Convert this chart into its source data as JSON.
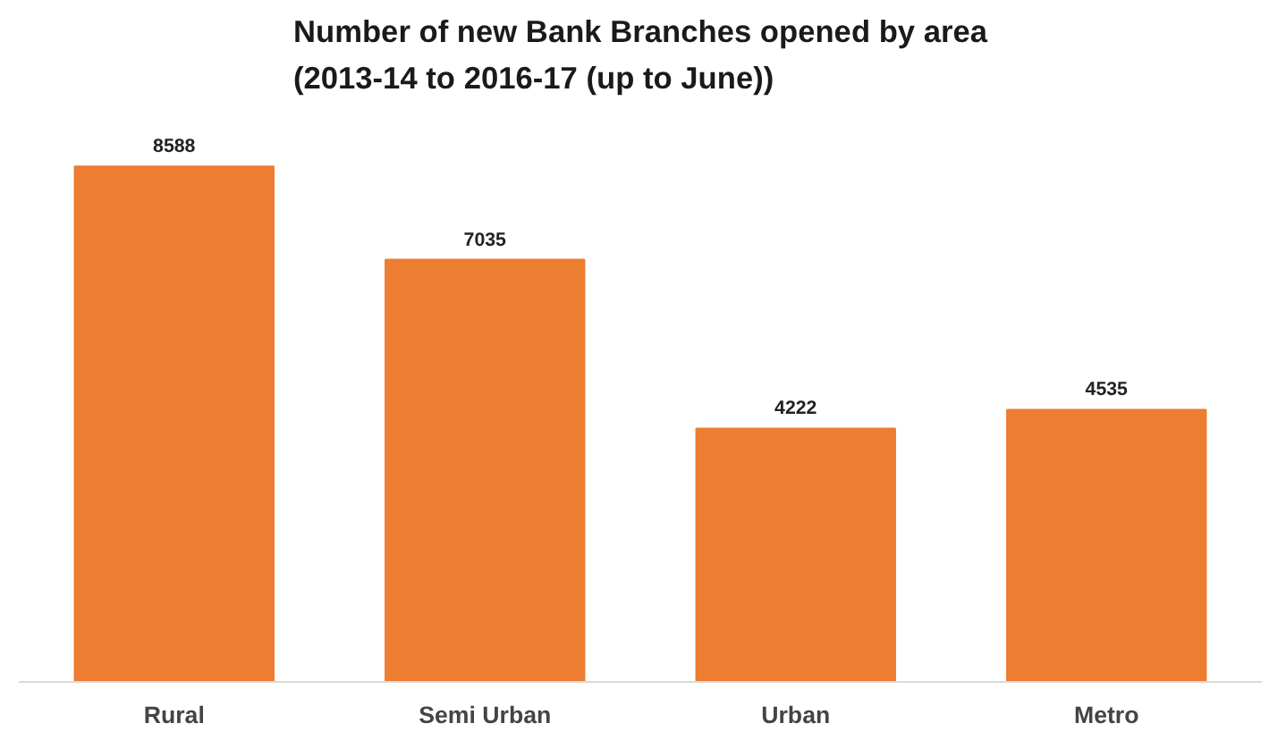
{
  "chart_data": {
    "type": "bar",
    "title": "Number of new Bank Branches opened by area\n(2013-14 to 2016-17 (up to June))",
    "categories": [
      "Rural",
      "Semi Urban",
      "Urban",
      "Metro"
    ],
    "values": [
      8588,
      7035,
      4222,
      4535
    ],
    "color": "#ed7d31",
    "data_labels": true,
    "grid": false
  }
}
